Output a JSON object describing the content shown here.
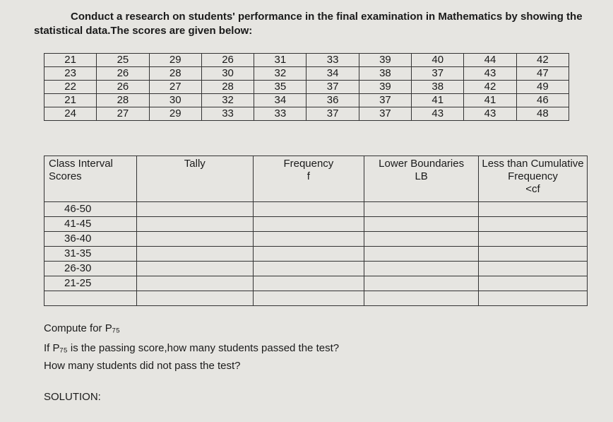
{
  "header": {
    "title": "Conduct a research on students' performance in the final examination in Mathematics by showing the statistical data.The scores are given below:"
  },
  "scores": {
    "rows": [
      [
        21,
        25,
        29,
        26,
        31,
        33,
        39,
        40,
        44,
        42
      ],
      [
        23,
        26,
        28,
        30,
        32,
        34,
        38,
        37,
        43,
        47
      ],
      [
        22,
        26,
        27,
        28,
        35,
        37,
        39,
        38,
        42,
        49
      ],
      [
        21,
        28,
        30,
        32,
        34,
        36,
        37,
        41,
        41,
        46
      ],
      [
        24,
        27,
        29,
        33,
        33,
        37,
        37,
        43,
        43,
        48
      ]
    ]
  },
  "frequency_table": {
    "headers": [
      [
        "Class Interval",
        "Scores"
      ],
      [
        "Tally"
      ],
      [
        "Frequency",
        "f"
      ],
      [
        "Lower Boundaries",
        "LB"
      ],
      [
        "Less than Cumulative",
        "Frequency",
        "<cf"
      ]
    ],
    "class_intervals": [
      "46-50",
      "41-45",
      "36-40",
      "31-35",
      "26-30",
      "21-25"
    ]
  },
  "questions": [
    "Compute for P₇₅",
    "If P₇₅ is the passing score,how many students passed the test?",
    "How many students did not pass the test?"
  ],
  "solution_label": "SOLUTION:"
}
